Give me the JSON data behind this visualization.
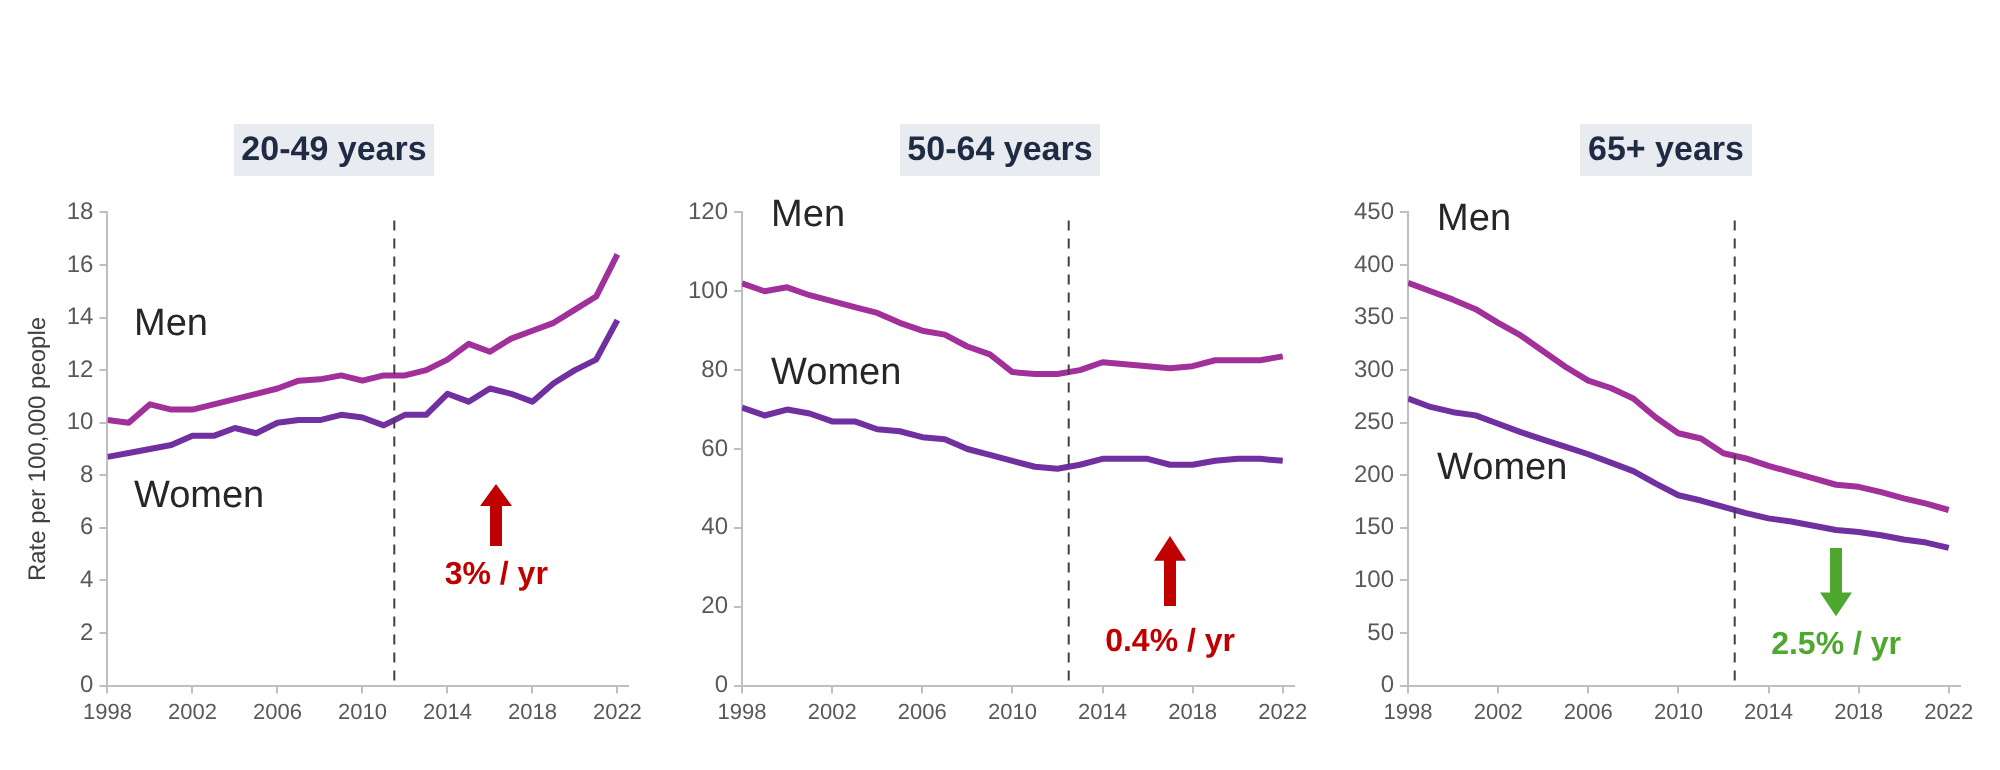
{
  "chart_data": [
    {
      "type": "line",
      "title": "20-49 years",
      "ylabel": "Rate per 100,000 people",
      "x": [
        1998,
        1999,
        2000,
        2001,
        2002,
        2003,
        2004,
        2005,
        2006,
        2007,
        2008,
        2009,
        2010,
        2011,
        2012,
        2013,
        2014,
        2015,
        2016,
        2017,
        2018,
        2019,
        2020,
        2021,
        2022
      ],
      "xlim": [
        1998,
        2022.5
      ],
      "xticks": [
        1998,
        2002,
        2006,
        2010,
        2014,
        2018,
        2022
      ],
      "ylim": [
        0,
        18
      ],
      "yticks": [
        0,
        2,
        4,
        6,
        8,
        10,
        12,
        14,
        16,
        18
      ],
      "grid": false,
      "legend": false,
      "marker": "none",
      "series": [
        {
          "name": "Men",
          "color": "#a1309b",
          "values": [
            10.1,
            10.0,
            10.7,
            10.5,
            10.5,
            10.7,
            10.9,
            11.1,
            11.3,
            11.6,
            11.65,
            11.8,
            11.6,
            11.8,
            11.8,
            12.0,
            12.4,
            13.0,
            12.7,
            13.2,
            13.5,
            13.8,
            14.3,
            14.8,
            16.4
          ]
        },
        {
          "name": "Women",
          "color": "#7030a0",
          "values": [
            8.7,
            8.85,
            9.0,
            9.15,
            9.5,
            9.5,
            9.8,
            9.6,
            10.0,
            10.1,
            10.1,
            10.3,
            10.2,
            9.9,
            10.3,
            10.3,
            11.1,
            10.8,
            11.3,
            11.1,
            10.8,
            11.5,
            12.0,
            12.4,
            13.9
          ]
        }
      ],
      "ref_lines": [
        {
          "axis": "x",
          "value": 2011.5,
          "color": "#404040",
          "line_style": "dashed"
        }
      ],
      "annotations": [
        "3% / yr"
      ]
    },
    {
      "type": "line",
      "title": "50-64 years",
      "x": [
        1998,
        1999,
        2000,
        2001,
        2002,
        2003,
        2004,
        2005,
        2006,
        2007,
        2008,
        2009,
        2010,
        2011,
        2012,
        2013,
        2014,
        2015,
        2016,
        2017,
        2018,
        2019,
        2020,
        2021,
        2022
      ],
      "xlim": [
        1998,
        2022.5
      ],
      "xticks": [
        1998,
        2002,
        2006,
        2010,
        2014,
        2018,
        2022
      ],
      "ylim": [
        0,
        120
      ],
      "yticks": [
        0,
        20,
        40,
        60,
        80,
        100,
        120
      ],
      "grid": false,
      "legend": false,
      "marker": "none",
      "series": [
        {
          "name": "Men",
          "color": "#a1309b",
          "values": [
            102,
            100,
            101,
            99,
            97.5,
            96,
            94.5,
            92,
            90,
            89,
            86,
            84,
            79.5,
            79,
            79,
            80,
            82,
            81.5,
            81,
            80.5,
            81,
            82.5,
            82.5,
            82.5,
            83.5
          ]
        },
        {
          "name": "Women",
          "color": "#7030a0",
          "values": [
            70.5,
            68.5,
            70,
            69,
            67,
            67,
            65,
            64.5,
            63,
            62.5,
            60,
            58.5,
            57,
            55.5,
            55,
            56,
            57.5,
            57.5,
            57.5,
            56,
            56,
            57,
            57.5,
            57.5,
            57
          ]
        }
      ],
      "ref_lines": [
        {
          "axis": "x",
          "value": 2012.5,
          "color": "#404040",
          "line_style": "dashed"
        }
      ],
      "annotations": [
        "0.4% / yr"
      ]
    },
    {
      "type": "line",
      "title": "65+ years",
      "x": [
        1998,
        1999,
        2000,
        2001,
        2002,
        2003,
        2004,
        2005,
        2006,
        2007,
        2008,
        2009,
        2010,
        2011,
        2012,
        2013,
        2014,
        2015,
        2016,
        2017,
        2018,
        2019,
        2020,
        2021,
        2022
      ],
      "xlim": [
        1998,
        2022.5
      ],
      "xticks": [
        1998,
        2002,
        2006,
        2010,
        2014,
        2018,
        2022
      ],
      "ylim": [
        0,
        450
      ],
      "yticks": [
        0,
        50,
        100,
        150,
        200,
        250,
        300,
        350,
        400,
        450
      ],
      "grid": false,
      "legend": false,
      "marker": "none",
      "series": [
        {
          "name": "Men",
          "color": "#a1309b",
          "values": [
            383,
            375,
            367,
            358,
            345,
            333,
            318,
            303,
            290,
            283,
            273,
            255,
            240,
            235,
            221,
            216,
            209,
            203,
            197,
            191,
            189,
            184,
            178,
            173,
            167
          ]
        },
        {
          "name": "Women",
          "color": "#7030a0",
          "values": [
            273,
            265,
            260,
            257,
            249,
            241,
            234,
            227,
            220,
            212,
            204,
            192,
            181,
            176,
            170,
            164,
            159,
            156,
            152,
            148,
            146,
            143,
            139,
            136,
            131
          ]
        }
      ],
      "ref_lines": [
        {
          "axis": "x",
          "value": 2012.5,
          "color": "#404040",
          "line_style": "dashed"
        }
      ],
      "annotations": [
        "2.5% / yr"
      ]
    }
  ]
}
